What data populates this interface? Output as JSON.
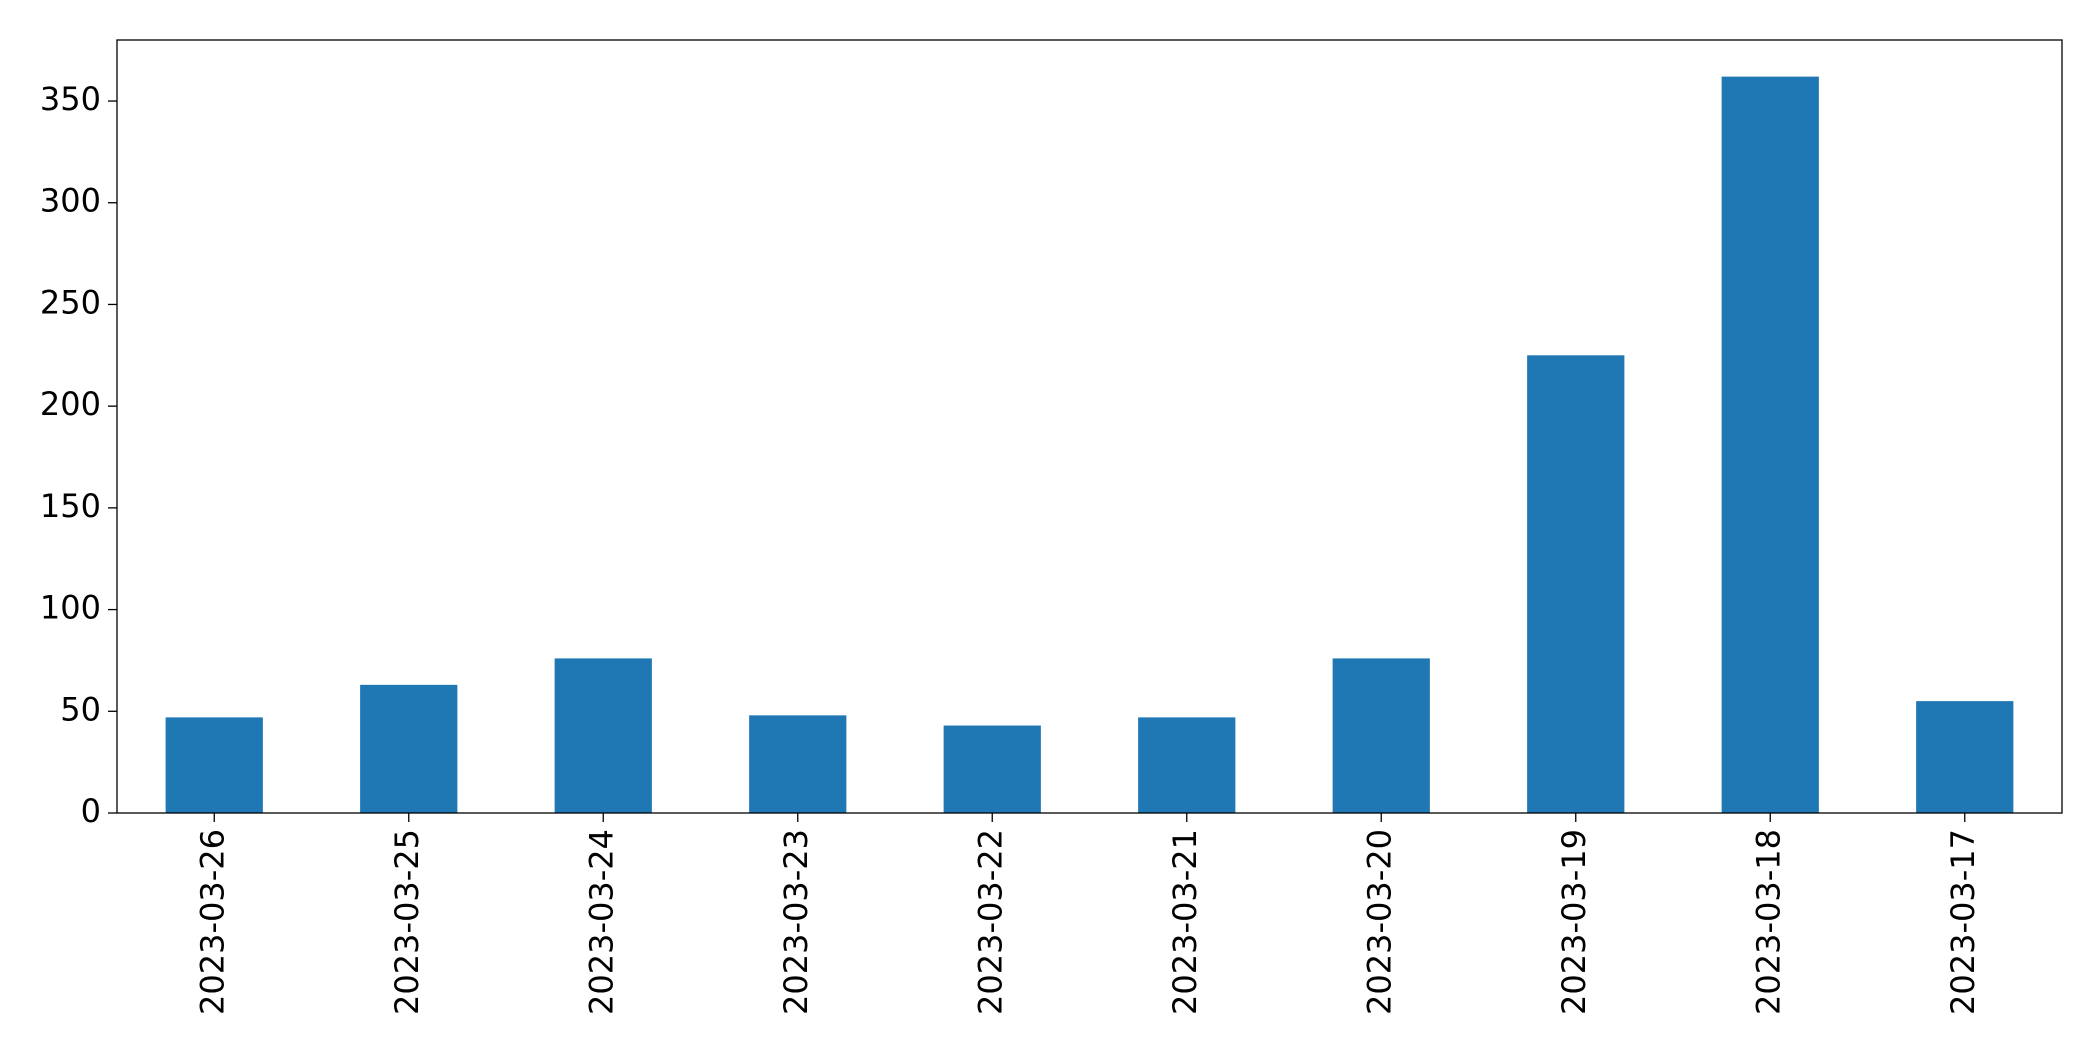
{
  "chart_data": {
    "type": "bar",
    "categories": [
      "2023-03-26",
      "2023-03-25",
      "2023-03-24",
      "2023-03-23",
      "2023-03-22",
      "2023-03-21",
      "2023-03-20",
      "2023-03-19",
      "2023-03-18",
      "2023-03-17"
    ],
    "values": [
      47,
      63,
      76,
      48,
      43,
      47,
      76,
      225,
      362,
      55
    ],
    "color": "#1f77b4",
    "ylim": [
      0,
      380
    ],
    "yticks": [
      0,
      50,
      100,
      150,
      200,
      250,
      300,
      350
    ],
    "grid": false
  }
}
